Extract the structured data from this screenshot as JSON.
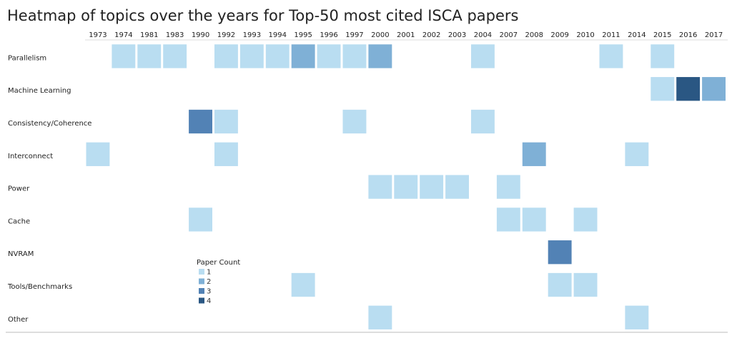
{
  "title": "Heatmap of topics over the years for Top-50 most cited ISCA papers",
  "chart_data": {
    "type": "heatmap",
    "title": "Heatmap of topics over the years for Top-50 most cited ISCA papers",
    "x": [
      "1973",
      "1974",
      "1981",
      "1983",
      "1990",
      "1992",
      "1993",
      "1994",
      "1995",
      "1996",
      "1997",
      "2000",
      "2001",
      "2002",
      "2003",
      "2004",
      "2007",
      "2008",
      "2009",
      "2010",
      "2011",
      "2014",
      "2015",
      "2016",
      "2017"
    ],
    "y": [
      "Parallelism",
      "Machine Learning",
      "Consistency/Coherence",
      "Interconnect",
      "Power",
      "Cache",
      "NVRAM",
      "Tools/Benchmarks",
      "Other"
    ],
    "cells": [
      {
        "topic": "Parallelism",
        "year": "1974",
        "value": 1
      },
      {
        "topic": "Parallelism",
        "year": "1981",
        "value": 1
      },
      {
        "topic": "Parallelism",
        "year": "1983",
        "value": 1
      },
      {
        "topic": "Parallelism",
        "year": "1992",
        "value": 1
      },
      {
        "topic": "Parallelism",
        "year": "1993",
        "value": 1
      },
      {
        "topic": "Parallelism",
        "year": "1994",
        "value": 1
      },
      {
        "topic": "Parallelism",
        "year": "1995",
        "value": 2
      },
      {
        "topic": "Parallelism",
        "year": "1996",
        "value": 1
      },
      {
        "topic": "Parallelism",
        "year": "1997",
        "value": 1
      },
      {
        "topic": "Parallelism",
        "year": "2000",
        "value": 2
      },
      {
        "topic": "Parallelism",
        "year": "2004",
        "value": 1
      },
      {
        "topic": "Parallelism",
        "year": "2011",
        "value": 1
      },
      {
        "topic": "Parallelism",
        "year": "2015",
        "value": 1
      },
      {
        "topic": "Machine Learning",
        "year": "2015",
        "value": 1
      },
      {
        "topic": "Machine Learning",
        "year": "2016",
        "value": 4
      },
      {
        "topic": "Machine Learning",
        "year": "2017",
        "value": 2
      },
      {
        "topic": "Consistency/Coherence",
        "year": "1990",
        "value": 3
      },
      {
        "topic": "Consistency/Coherence",
        "year": "1992",
        "value": 1
      },
      {
        "topic": "Consistency/Coherence",
        "year": "1997",
        "value": 1
      },
      {
        "topic": "Consistency/Coherence",
        "year": "2004",
        "value": 1
      },
      {
        "topic": "Interconnect",
        "year": "1973",
        "value": 1
      },
      {
        "topic": "Interconnect",
        "year": "1992",
        "value": 1
      },
      {
        "topic": "Interconnect",
        "year": "2008",
        "value": 2
      },
      {
        "topic": "Interconnect",
        "year": "2014",
        "value": 1
      },
      {
        "topic": "Power",
        "year": "2000",
        "value": 1
      },
      {
        "topic": "Power",
        "year": "2001",
        "value": 1
      },
      {
        "topic": "Power",
        "year": "2002",
        "value": 1
      },
      {
        "topic": "Power",
        "year": "2003",
        "value": 1
      },
      {
        "topic": "Power",
        "year": "2007",
        "value": 1
      },
      {
        "topic": "Cache",
        "year": "1990",
        "value": 1
      },
      {
        "topic": "Cache",
        "year": "2007",
        "value": 1
      },
      {
        "topic": "Cache",
        "year": "2008",
        "value": 1
      },
      {
        "topic": "Cache",
        "year": "2010",
        "value": 1
      },
      {
        "topic": "NVRAM",
        "year": "2009",
        "value": 3
      },
      {
        "topic": "Tools/Benchmarks",
        "year": "1995",
        "value": 1
      },
      {
        "topic": "Tools/Benchmarks",
        "year": "2009",
        "value": 1
      },
      {
        "topic": "Tools/Benchmarks",
        "year": "2010",
        "value": 1
      },
      {
        "topic": "Other",
        "year": "2000",
        "value": 1
      },
      {
        "topic": "Other",
        "year": "2014",
        "value": 1
      }
    ],
    "legend": {
      "title": "Paper Count",
      "items": [
        {
          "label": "1",
          "value": 1,
          "color": "#b9ddf1"
        },
        {
          "label": "2",
          "value": 2,
          "color": "#7fb0d6"
        },
        {
          "label": "3",
          "value": 3,
          "color": "#5282b5"
        },
        {
          "label": "4",
          "value": 4,
          "color": "#2a5783"
        }
      ]
    },
    "colors": {
      "1": "#b9ddf1",
      "2": "#7fb0d6",
      "3": "#5282b5",
      "4": "#2a5783"
    }
  }
}
